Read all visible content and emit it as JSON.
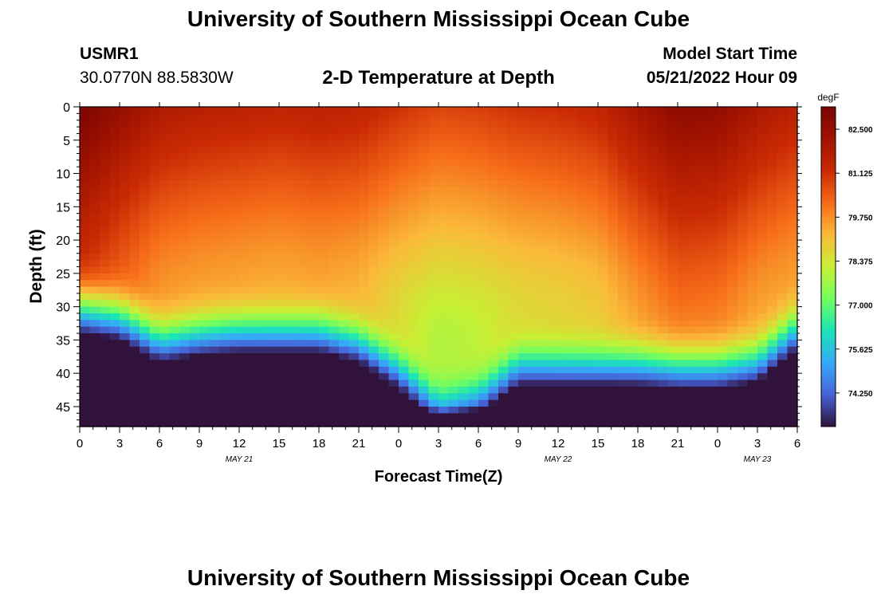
{
  "page": {
    "title": "University of Southern Mississippi Ocean Cube",
    "footer_title": "University of Southern Mississippi Ocean Cube"
  },
  "header": {
    "station": "USMR1",
    "coords": "30.0770N  88.5830W",
    "plot_title": "2-D Temperature at Depth",
    "model_label": "Model Start Time",
    "model_time": "05/21/2022 Hour 09"
  },
  "chart_data": {
    "type": "heatmap",
    "title": "2-D Temperature at Depth",
    "xlabel": "Forecast Time(Z)",
    "ylabel": "Depth (ft)",
    "x_unit": "hours since 05/21 00Z",
    "xlim": [
      0,
      54
    ],
    "ylim": [
      0,
      48
    ],
    "x_ticks": [
      0,
      3,
      6,
      9,
      12,
      15,
      18,
      21,
      24,
      27,
      30,
      33,
      36,
      39,
      42,
      45,
      48,
      51,
      54
    ],
    "x_tick_labels": [
      "0",
      "3",
      "6",
      "9",
      "12",
      "15",
      "18",
      "21",
      "0",
      "3",
      "6",
      "9",
      "12",
      "15",
      "18",
      "21",
      "0",
      "3",
      "6"
    ],
    "y_ticks": [
      0,
      5,
      10,
      15,
      20,
      25,
      30,
      35,
      40,
      45
    ],
    "y_tick_labels": [
      "0",
      "5",
      "10",
      "15",
      "20",
      "25",
      "30",
      "35",
      "40",
      "45"
    ],
    "date_labels": [
      {
        "text": "MAY 21",
        "hour": 12
      },
      {
        "text": "MAY 22",
        "hour": 36
      },
      {
        "text": "MAY 23",
        "hour": 51
      }
    ],
    "colorbar": {
      "unit": "degF",
      "min": 73.2,
      "max": 83.2,
      "ticks": [
        82.5,
        81.125,
        79.75,
        78.375,
        77.0,
        75.625,
        74.25
      ],
      "tick_labels": [
        "82.500",
        "81.125",
        "79.750",
        "78.375",
        "77.000",
        "75.625",
        "74.250"
      ]
    },
    "thermocline_depth_ft": {
      "hours": [
        0,
        3,
        6,
        9,
        12,
        15,
        18,
        21,
        24,
        27,
        30,
        33,
        36,
        39,
        42,
        45,
        48,
        51,
        54
      ],
      "depths": [
        27.5,
        28.5,
        32,
        31,
        30.5,
        30.5,
        30.5,
        32,
        36,
        41.5,
        40,
        35.5,
        35.5,
        35.5,
        35.5,
        36,
        36,
        35,
        30
      ]
    },
    "surface_temp_degF": {
      "hours": [
        0,
        3,
        6,
        9,
        12,
        15,
        18,
        21,
        24,
        27,
        30,
        33,
        36,
        39,
        42,
        45,
        48,
        51,
        54
      ],
      "values": [
        83.2,
        82.5,
        81.9,
        81.7,
        81.6,
        81.5,
        81.6,
        81.5,
        81.1,
        80.8,
        80.9,
        81.1,
        81.2,
        81.4,
        82.1,
        82.7,
        82.6,
        82.0,
        81.6
      ]
    }
  }
}
